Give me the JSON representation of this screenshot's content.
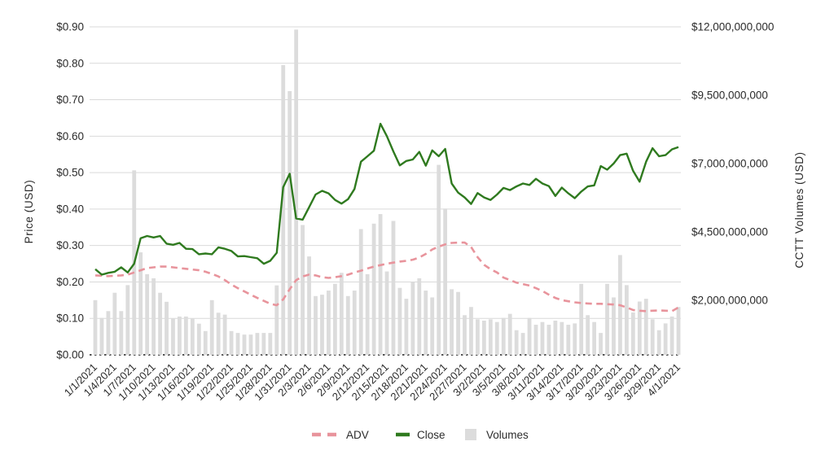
{
  "chart_data": {
    "type": "combo-line-bar",
    "title": "",
    "left_axis": {
      "label": "Price (USD)",
      "tick_labels": [
        "$0.00",
        "$0.10",
        "$0.20",
        "$0.30",
        "$0.40",
        "$0.50",
        "$0.60",
        "$0.70",
        "$0.80",
        "$0.90"
      ],
      "tick_values": [
        0,
        0.1,
        0.2,
        0.3,
        0.4,
        0.5,
        0.6,
        0.7,
        0.8,
        0.9
      ],
      "min": 0,
      "max": 0.9
    },
    "right_axis": {
      "label": "CCTT Volumes (USD)",
      "tick_labels": [
        "$2,000,000,000",
        "$4,500,000,000",
        "$7,000,000,000",
        "$9,500,000,000",
        "$12,000,000,000"
      ],
      "tick_values_billions": [
        2,
        4.5,
        7,
        9.5,
        12
      ],
      "min_billions": 0,
      "max_billions": 12
    },
    "x": [
      "1/1/2021",
      "1/2/2021",
      "1/3/2021",
      "1/4/2021",
      "1/5/2021",
      "1/6/2021",
      "1/7/2021",
      "1/8/2021",
      "1/9/2021",
      "1/10/2021",
      "1/11/2021",
      "1/12/2021",
      "1/13/2021",
      "1/14/2021",
      "1/15/2021",
      "1/16/2021",
      "1/17/2021",
      "1/18/2021",
      "1/19/2021",
      "1/20/2021",
      "1/21/2021",
      "1/22/2021",
      "1/23/2021",
      "1/24/2021",
      "1/25/2021",
      "1/26/2021",
      "1/27/2021",
      "1/28/2021",
      "1/29/2021",
      "1/30/2021",
      "1/31/2021",
      "2/1/2021",
      "2/2/2021",
      "2/3/2021",
      "2/4/2021",
      "2/5/2021",
      "2/6/2021",
      "2/7/2021",
      "2/8/2021",
      "2/9/2021",
      "2/10/2021",
      "2/11/2021",
      "2/12/2021",
      "2/13/2021",
      "2/14/2021",
      "2/15/2021",
      "2/16/2021",
      "2/17/2021",
      "2/18/2021",
      "2/19/2021",
      "2/20/2021",
      "2/21/2021",
      "2/22/2021",
      "2/23/2021",
      "2/24/2021",
      "2/25/2021",
      "2/26/2021",
      "2/27/2021",
      "2/28/2021",
      "3/1/2021",
      "3/2/2021",
      "3/3/2021",
      "3/4/2021",
      "3/5/2021",
      "3/6/2021",
      "3/7/2021",
      "3/8/2021",
      "3/9/2021",
      "3/10/2021",
      "3/11/2021",
      "3/12/2021",
      "3/13/2021",
      "3/14/2021",
      "3/15/2021",
      "3/16/2021",
      "3/17/2021",
      "3/18/2021",
      "3/19/2021",
      "3/20/2021",
      "3/21/2021",
      "3/22/2021",
      "3/23/2021",
      "3/24/2021",
      "3/25/2021",
      "3/26/2021",
      "3/27/2021",
      "3/28/2021",
      "3/29/2021",
      "3/30/2021",
      "3/31/2021",
      "4/1/2021"
    ],
    "x_tick_every": 3,
    "series": [
      {
        "name": "ADV",
        "type": "line",
        "dashed": true,
        "axis": "left",
        "color": "#e8949c",
        "values": [
          0.218,
          0.217,
          0.216,
          0.217,
          0.218,
          0.22,
          0.226,
          0.232,
          0.238,
          0.24,
          0.242,
          0.242,
          0.24,
          0.238,
          0.236,
          0.234,
          0.232,
          0.228,
          0.222,
          0.215,
          0.205,
          0.193,
          0.183,
          0.174,
          0.165,
          0.156,
          0.148,
          0.14,
          0.136,
          0.152,
          0.18,
          0.205,
          0.215,
          0.22,
          0.218,
          0.213,
          0.211,
          0.213,
          0.216,
          0.22,
          0.226,
          0.231,
          0.237,
          0.242,
          0.246,
          0.25,
          0.253,
          0.256,
          0.258,
          0.261,
          0.267,
          0.277,
          0.289,
          0.297,
          0.303,
          0.307,
          0.308,
          0.308,
          0.296,
          0.268,
          0.247,
          0.235,
          0.226,
          0.212,
          0.205,
          0.198,
          0.194,
          0.19,
          0.183,
          0.175,
          0.165,
          0.156,
          0.15,
          0.147,
          0.144,
          0.142,
          0.141,
          0.14,
          0.14,
          0.139,
          0.138,
          0.136,
          0.13,
          0.123,
          0.121,
          0.12,
          0.121,
          0.122,
          0.121,
          0.12,
          0.13
        ]
      },
      {
        "name": "Close",
        "type": "line",
        "dashed": false,
        "axis": "left",
        "color": "#2f7a1f",
        "values": [
          0.235,
          0.22,
          0.225,
          0.228,
          0.24,
          0.226,
          0.25,
          0.32,
          0.326,
          0.322,
          0.326,
          0.305,
          0.302,
          0.307,
          0.291,
          0.29,
          0.276,
          0.278,
          0.276,
          0.295,
          0.291,
          0.285,
          0.27,
          0.271,
          0.268,
          0.265,
          0.25,
          0.258,
          0.28,
          0.46,
          0.497,
          0.374,
          0.371,
          0.405,
          0.44,
          0.45,
          0.443,
          0.425,
          0.415,
          0.427,
          0.455,
          0.53,
          0.545,
          0.56,
          0.634,
          0.6,
          0.558,
          0.52,
          0.532,
          0.536,
          0.557,
          0.519,
          0.561,
          0.545,
          0.565,
          0.47,
          0.445,
          0.432,
          0.414,
          0.444,
          0.432,
          0.425,
          0.44,
          0.458,
          0.452,
          0.462,
          0.47,
          0.466,
          0.483,
          0.47,
          0.463,
          0.436,
          0.459,
          0.443,
          0.43,
          0.448,
          0.462,
          0.465,
          0.518,
          0.508,
          0.525,
          0.548,
          0.552,
          0.505,
          0.475,
          0.53,
          0.567,
          0.545,
          0.548,
          0.564,
          0.57
        ]
      },
      {
        "name": "Volumes",
        "type": "bar",
        "axis": "right",
        "color": "#dcdcdc",
        "unit": "USD billions",
        "values_billions": [
          2.0,
          1.35,
          1.6,
          2.27,
          1.6,
          2.55,
          6.75,
          3.75,
          2.95,
          2.8,
          2.27,
          1.94,
          1.34,
          1.4,
          1.4,
          1.34,
          1.14,
          0.87,
          2.0,
          1.54,
          1.47,
          0.87,
          0.8,
          0.74,
          0.74,
          0.8,
          0.8,
          0.8,
          2.54,
          10.6,
          9.65,
          11.9,
          4.75,
          3.6,
          2.15,
          2.2,
          2.35,
          2.6,
          3.0,
          2.15,
          2.35,
          4.6,
          2.95,
          4.8,
          5.15,
          3.05,
          4.9,
          2.45,
          2.05,
          2.65,
          2.8,
          2.35,
          2.1,
          6.95,
          5.35,
          2.4,
          2.3,
          1.45,
          1.75,
          1.3,
          1.25,
          1.3,
          1.2,
          1.35,
          1.5,
          0.9,
          0.8,
          1.35,
          1.1,
          1.2,
          1.1,
          1.25,
          1.2,
          1.1,
          1.15,
          2.6,
          1.45,
          1.2,
          0.8,
          2.6,
          2.1,
          3.65,
          2.55,
          1.55,
          1.95,
          2.05,
          1.3,
          0.9,
          1.15,
          1.4,
          1.75
        ]
      }
    ],
    "legend": {
      "position": "bottom-center",
      "entries": [
        {
          "label": "ADV",
          "swatch": "dashed-line",
          "color": "#e8949c"
        },
        {
          "label": "Close",
          "swatch": "solid-line",
          "color": "#2f7a1f"
        },
        {
          "label": "Volumes",
          "swatch": "square",
          "color": "#dcdcdc"
        }
      ]
    },
    "grid": {
      "horizontal": true,
      "vertical": false,
      "color": "#d9d9d9",
      "baseline_style": "dotted-black"
    }
  },
  "colors": {
    "background": "#ffffff",
    "text": "#2b2b2b",
    "gridline": "#d9d9d9",
    "baseline": "#1a1a1a"
  }
}
